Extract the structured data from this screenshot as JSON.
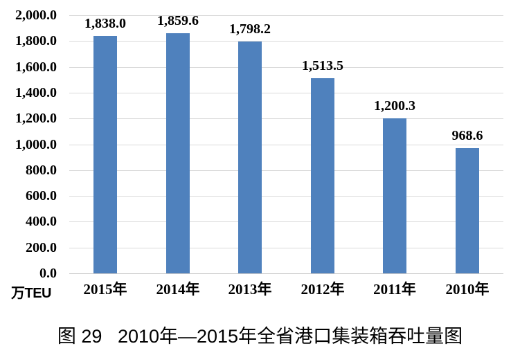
{
  "chart_data": {
    "type": "bar",
    "categories": [
      "2015年",
      "2014年",
      "2013年",
      "2012年",
      "2011年",
      "2010年"
    ],
    "values": [
      1838.0,
      1859.6,
      1798.2,
      1513.5,
      1200.3,
      968.6
    ],
    "value_labels": [
      "1,838.0",
      "1,859.6",
      "1,798.2",
      "1,513.5",
      "1,200.3",
      "968.6"
    ],
    "title": "图 29   2010年—2015年全省港口集装箱吞吐量图",
    "xlabel": "",
    "ylabel": "万TEU",
    "unit_label": "万TEU",
    "ylim": [
      0,
      2000
    ],
    "ytick_interval": 200,
    "ytick_labels": [
      "2,000.0",
      "1,800.0",
      "1,600.0",
      "1,400.0",
      "1,200.0",
      "1,000.0",
      "800.0",
      "600.0",
      "400.0",
      "200.0",
      "0.0"
    ],
    "grid": true,
    "legend": "none",
    "bar_color": "#4F81BD",
    "gridline_color": "#D9D9D9",
    "text_color": "#000000",
    "background_color": "#FFFFFF"
  }
}
